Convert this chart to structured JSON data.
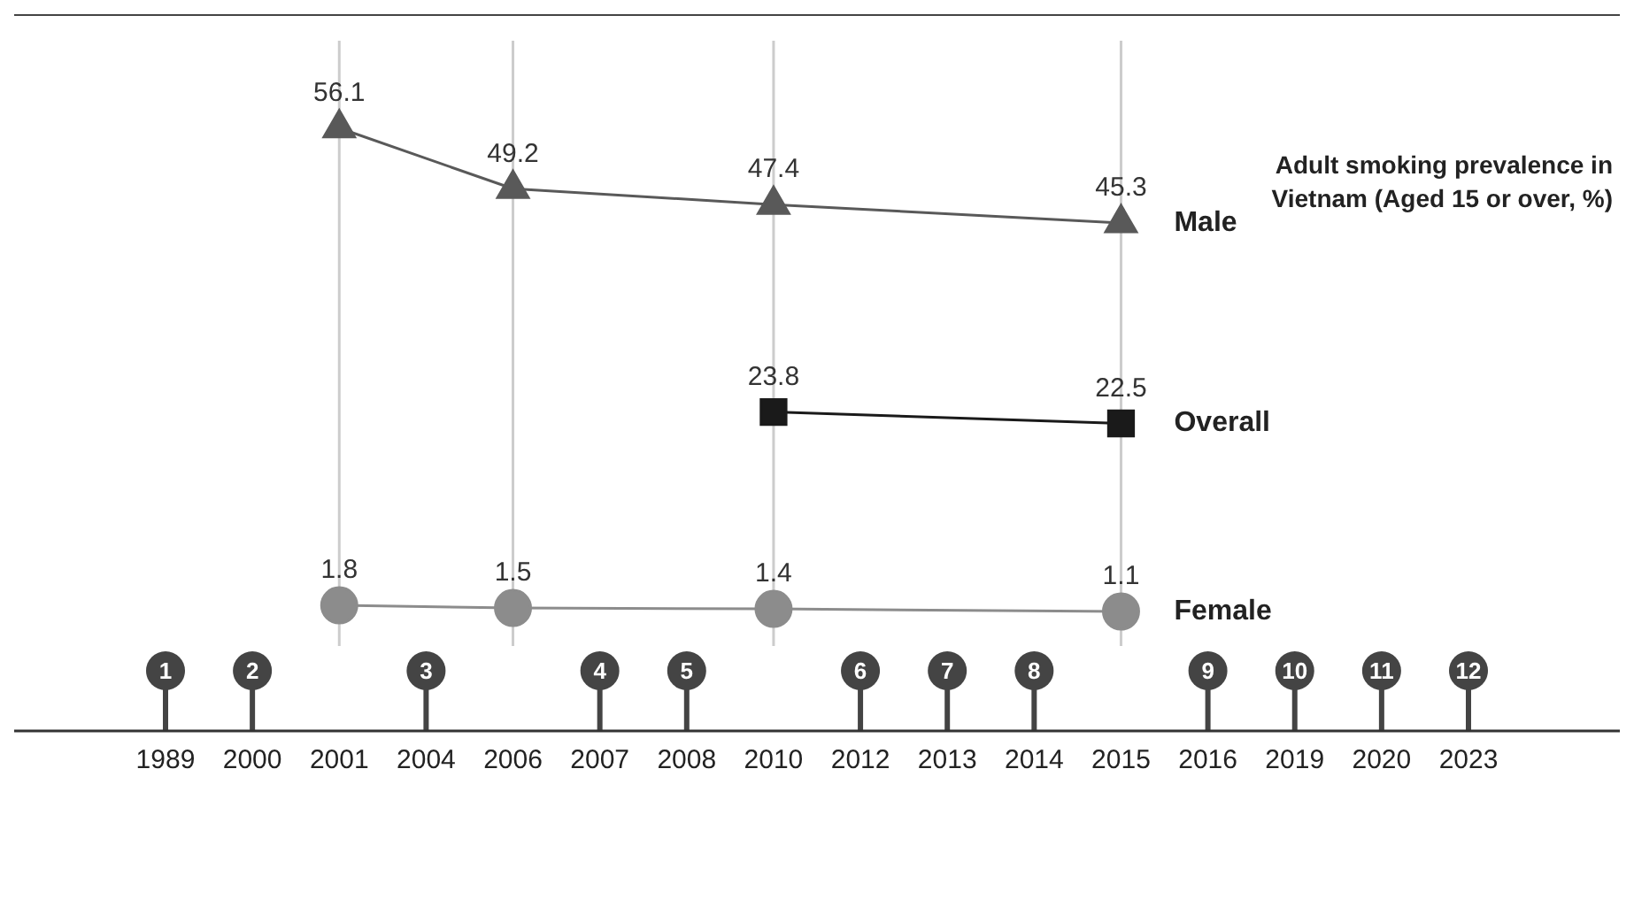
{
  "chart_data": {
    "type": "line",
    "title": "Adult smoking prevalence in Vietnam (Aged 15 or over, %)",
    "categories": [
      "1989",
      "2000",
      "2001",
      "2004",
      "2006",
      "2007",
      "2008",
      "2010",
      "2012",
      "2013",
      "2014",
      "2015",
      "2016",
      "2019",
      "2020",
      "2023"
    ],
    "series": [
      {
        "name": "Male",
        "color": "#595959",
        "marker": "triangle",
        "values": [
          null,
          null,
          56.1,
          null,
          49.2,
          null,
          null,
          47.4,
          null,
          null,
          null,
          45.3,
          null,
          null,
          null,
          null
        ]
      },
      {
        "name": "Overall",
        "color": "#1a1a1a",
        "marker": "square",
        "values": [
          null,
          null,
          null,
          null,
          null,
          null,
          null,
          23.8,
          null,
          null,
          null,
          22.5,
          null,
          null,
          null,
          null
        ]
      },
      {
        "name": "Female",
        "color": "#8c8c8c",
        "marker": "circle",
        "values": [
          null,
          null,
          1.8,
          null,
          1.5,
          null,
          null,
          1.4,
          null,
          null,
          null,
          1.1,
          null,
          null,
          null,
          null
        ]
      }
    ],
    "ref_lines": [
      {
        "axis": "x",
        "value": "2001",
        "color": "#cccccc"
      },
      {
        "axis": "x",
        "value": "2006",
        "color": "#cccccc"
      },
      {
        "axis": "x",
        "value": "2010",
        "color": "#cccccc"
      },
      {
        "axis": "x",
        "value": "2015",
        "color": "#cccccc"
      }
    ],
    "annotations": [
      "1",
      "2",
      "3",
      "4",
      "5",
      "6",
      "7",
      "8",
      "9",
      "10",
      "11",
      "12"
    ],
    "data_labels": true,
    "legend": false,
    "grid": false,
    "tick_labels": "x"
  }
}
